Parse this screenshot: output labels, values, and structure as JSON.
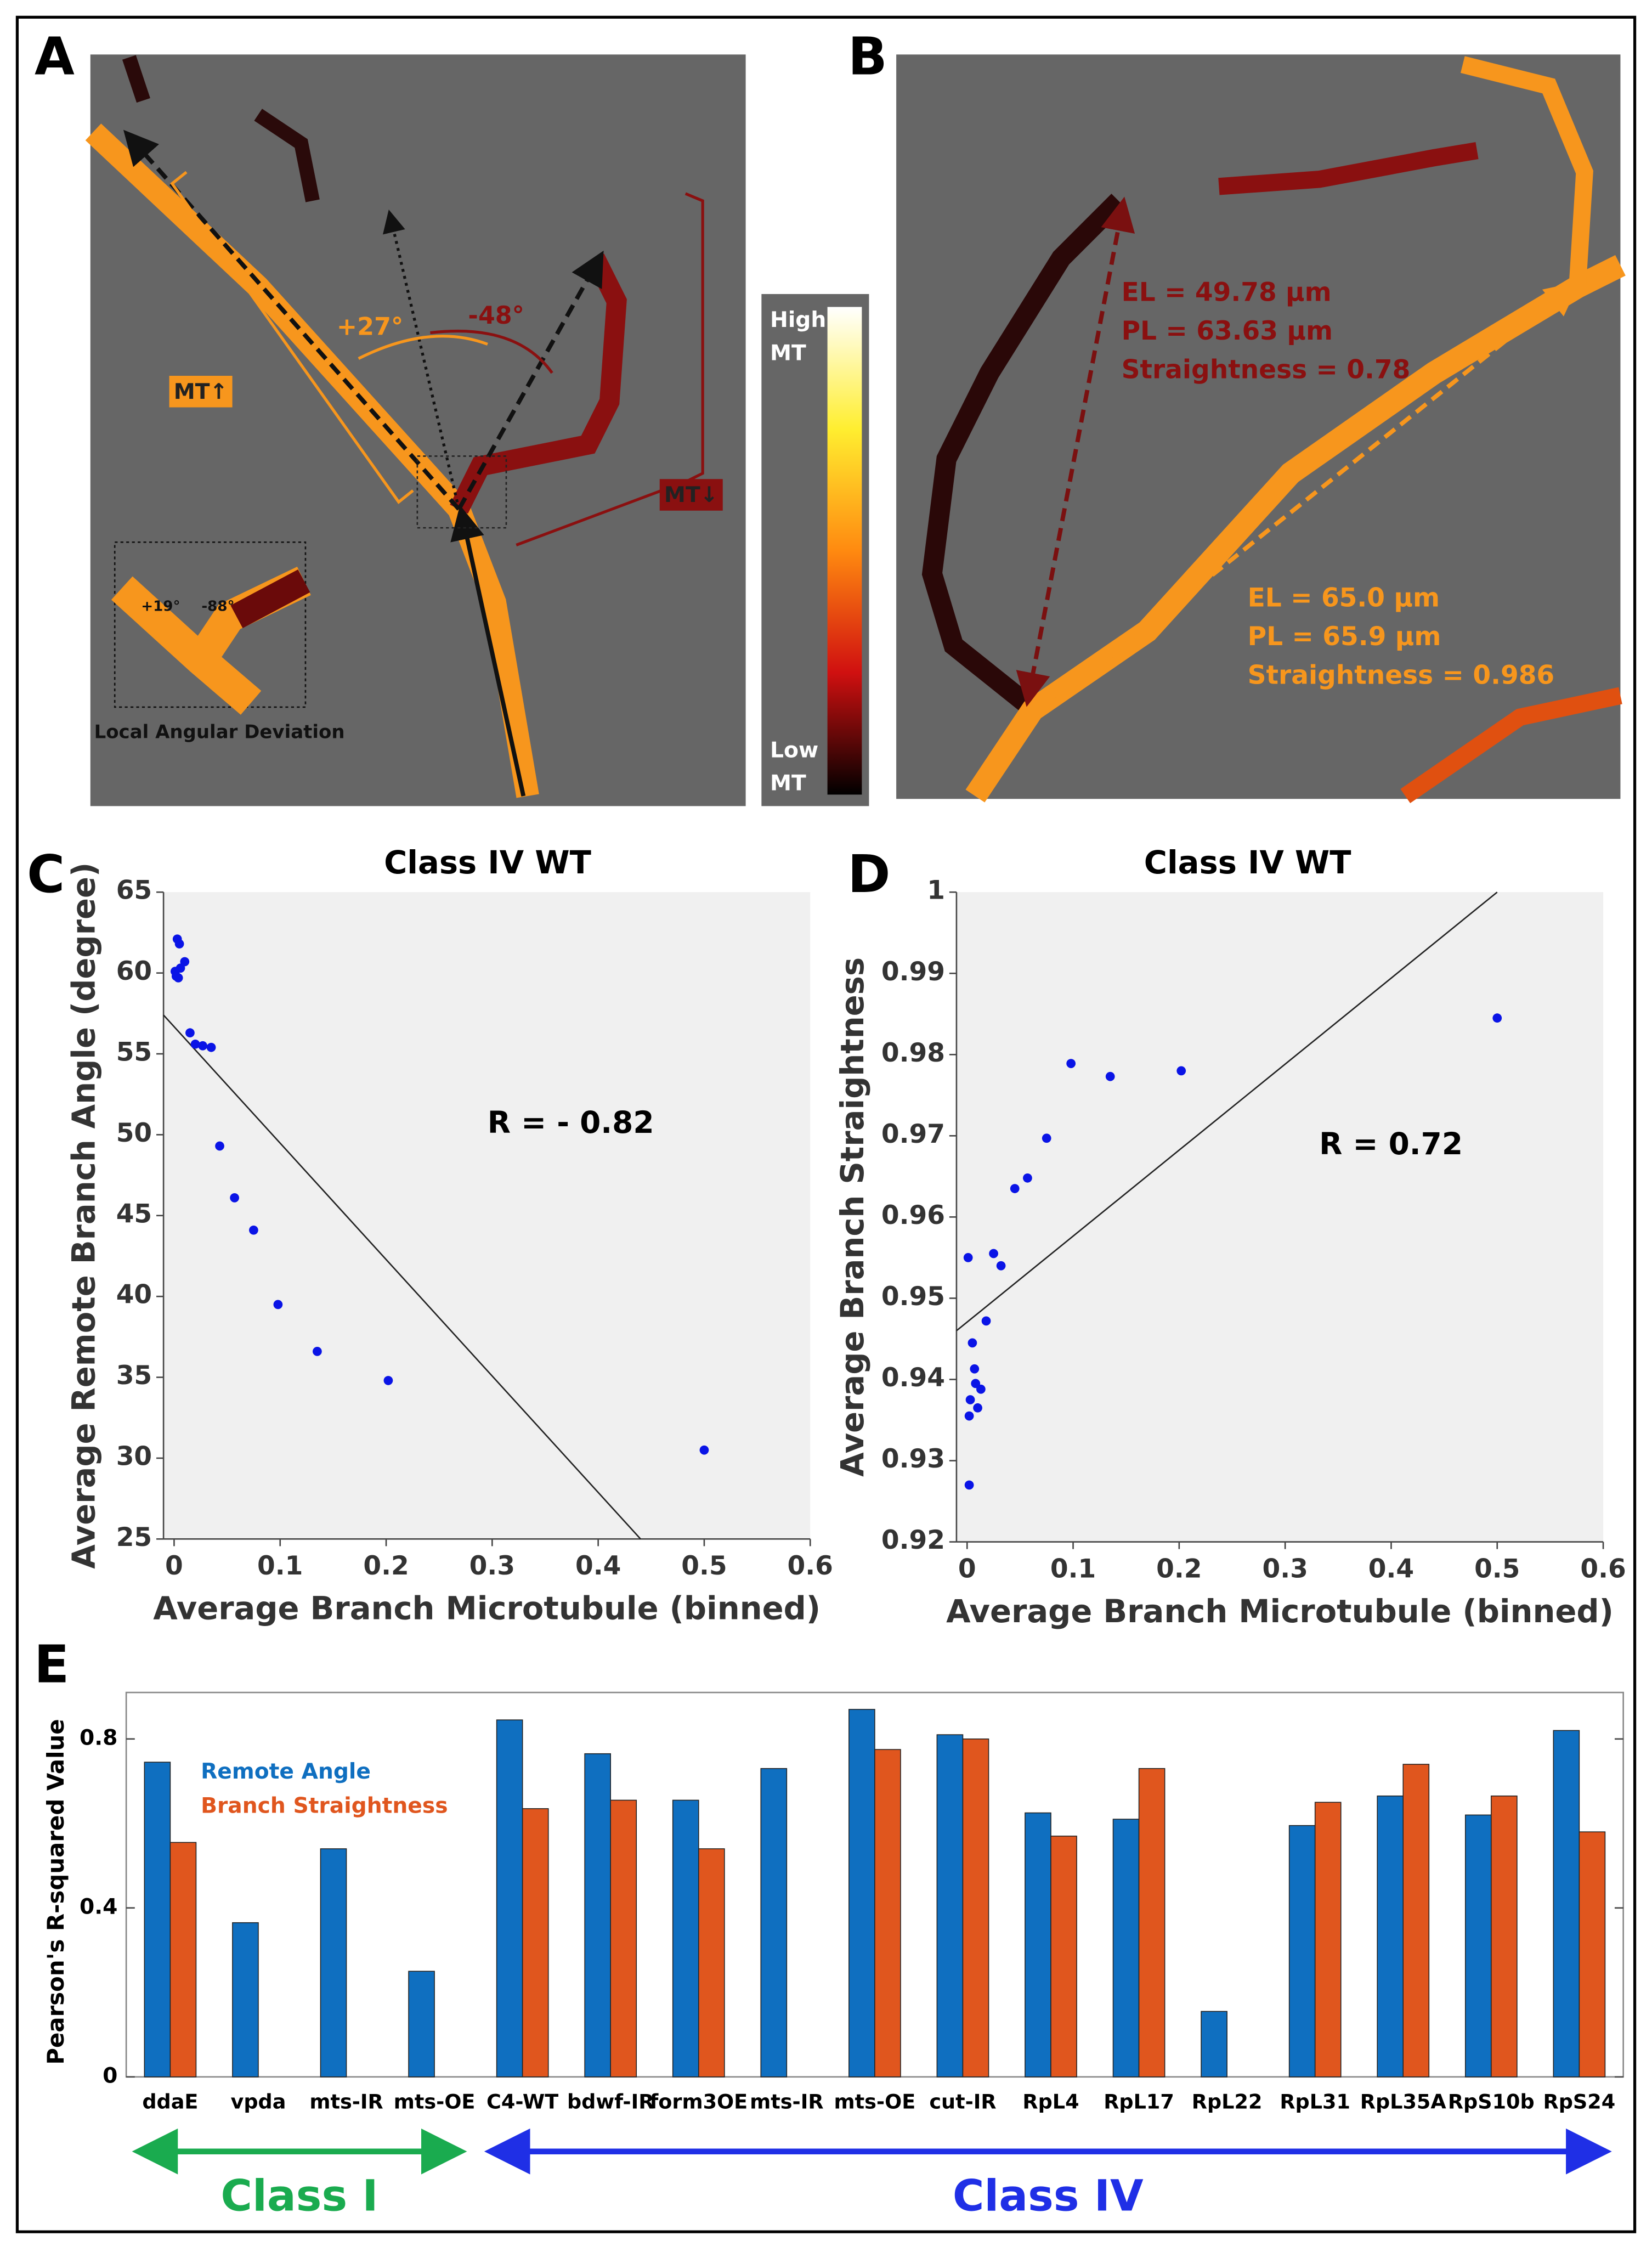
{
  "panel_labels": [
    "A",
    "B",
    "C",
    "D",
    "E"
  ],
  "panel_a": {
    "angle_left": "+27°",
    "angle_right": "-48°",
    "mt_up": "MT↑",
    "mt_down": "MT↓",
    "inset_left": "+19°",
    "inset_right": "-88°",
    "inset_caption": "Local Angular Deviation"
  },
  "colorbar": {
    "high": [
      "High",
      "MT"
    ],
    "low": [
      "Low",
      "MT"
    ]
  },
  "panel_b": {
    "red_labels": [
      "EL = 49.78 µm",
      "PL = 63.63 µm",
      "Straightness = 0.78"
    ],
    "orange_labels": [
      "EL = 65.0 µm",
      "PL = 65.9 µm",
      "Straightness = 0.986"
    ]
  },
  "chart_data": [
    {
      "type": "scatter",
      "title": "Class IV WT",
      "x_label": "Average Branch Microtubule (binned)",
      "y_label": "Average Remote Branch Angle (degree)",
      "annotation": "R = - 0.82",
      "color": "#0a14e6",
      "x": [
        0.003,
        0.005,
        0.001,
        0.002,
        0.006,
        0.01,
        0.004,
        0.015,
        0.02,
        0.027,
        0.035,
        0.043,
        0.057,
        0.075,
        0.098,
        0.135,
        0.202,
        0.5
      ],
      "values": [
        62.1,
        61.8,
        60.1,
        59.8,
        60.3,
        60.7,
        59.7,
        56.3,
        55.6,
        55.5,
        55.4,
        49.3,
        46.1,
        44.1,
        39.5,
        36.6,
        34.8,
        30.5
      ],
      "fit_line": {
        "x": [
          -0.01,
          0.44
        ],
        "y": [
          57.4,
          25
        ]
      },
      "xlim": [
        -0.01,
        0.6
      ],
      "xticks": [
        0,
        0.1,
        0.2,
        0.3,
        0.4,
        0.5,
        0.6
      ],
      "ylim": [
        25,
        65
      ],
      "yticks": [
        25,
        30,
        35,
        40,
        45,
        50,
        55,
        60,
        65
      ],
      "grid": false
    },
    {
      "type": "scatter",
      "title": "Class IV WT",
      "x_label": "Average Branch Microtubule (binned)",
      "y_label": "Average Branch Straightness",
      "annotation": "R = 0.72",
      "color": "#0a14e6",
      "x": [
        0.001,
        0.002,
        0.002,
        0.003,
        0.005,
        0.007,
        0.008,
        0.01,
        0.013,
        0.018,
        0.025,
        0.032,
        0.045,
        0.057,
        0.075,
        0.098,
        0.135,
        0.202,
        0.5
      ],
      "values": [
        0.955,
        0.927,
        0.9355,
        0.9375,
        0.9445,
        0.9413,
        0.9395,
        0.9365,
        0.9388,
        0.9472,
        0.9555,
        0.954,
        0.9635,
        0.9648,
        0.9697,
        0.9789,
        0.9773,
        0.978,
        0.9845
      ],
      "fit_line": {
        "x": [
          -0.01,
          0.5
        ],
        "y": [
          0.946,
          1
        ]
      },
      "xlim": [
        -0.01,
        0.6
      ],
      "xticks": [
        0,
        0.1,
        0.2,
        0.3,
        0.4,
        0.5,
        0.6
      ],
      "ylim": [
        0.92,
        1
      ],
      "yticks": [
        0.92,
        0.93,
        0.94,
        0.95,
        0.96,
        0.97,
        0.98,
        0.99,
        1
      ],
      "grid": false
    },
    {
      "type": "bar",
      "y_label": "Pearson's R-squared Value",
      "categories": [
        "ddaE",
        "vpda",
        "mts-IR",
        "mts-OE",
        "C4-WT",
        "bdwf-IR",
        "form3OE",
        "mts-IR",
        "mts-OE",
        "cut-IR",
        "RpL4",
        "RpL17",
        "RpL22",
        "RpL31",
        "RpL35A",
        "RpS10b",
        "RpS24"
      ],
      "series": [
        {
          "name": "Remote Angle",
          "color": "#0f6fc0",
          "values": [
            0.745,
            0.365,
            0.54,
            0.25,
            0.845,
            0.765,
            0.655,
            0.73,
            0.87,
            0.81,
            0.625,
            0.61,
            0.155,
            0.595,
            0.665,
            0.62,
            0.82
          ]
        },
        {
          "name": "Branch Straightness",
          "color": "#e0561e",
          "values": [
            0.555,
            null,
            null,
            null,
            0.635,
            0.655,
            0.54,
            null,
            0.775,
            0.8,
            0.57,
            0.73,
            null,
            0.65,
            0.74,
            0.665,
            0.58
          ]
        }
      ],
      "ylim": [
        0,
        0.91
      ],
      "yticks": [
        0,
        0.4,
        0.8
      ],
      "legend": "upper left",
      "grid": false,
      "groups": [
        {
          "name": "Class I",
          "color": "#1aab4f",
          "span": [
            0,
            3
          ]
        },
        {
          "name": "Class IV",
          "color": "#1f2fe6",
          "span": [
            4,
            16
          ]
        }
      ]
    }
  ]
}
